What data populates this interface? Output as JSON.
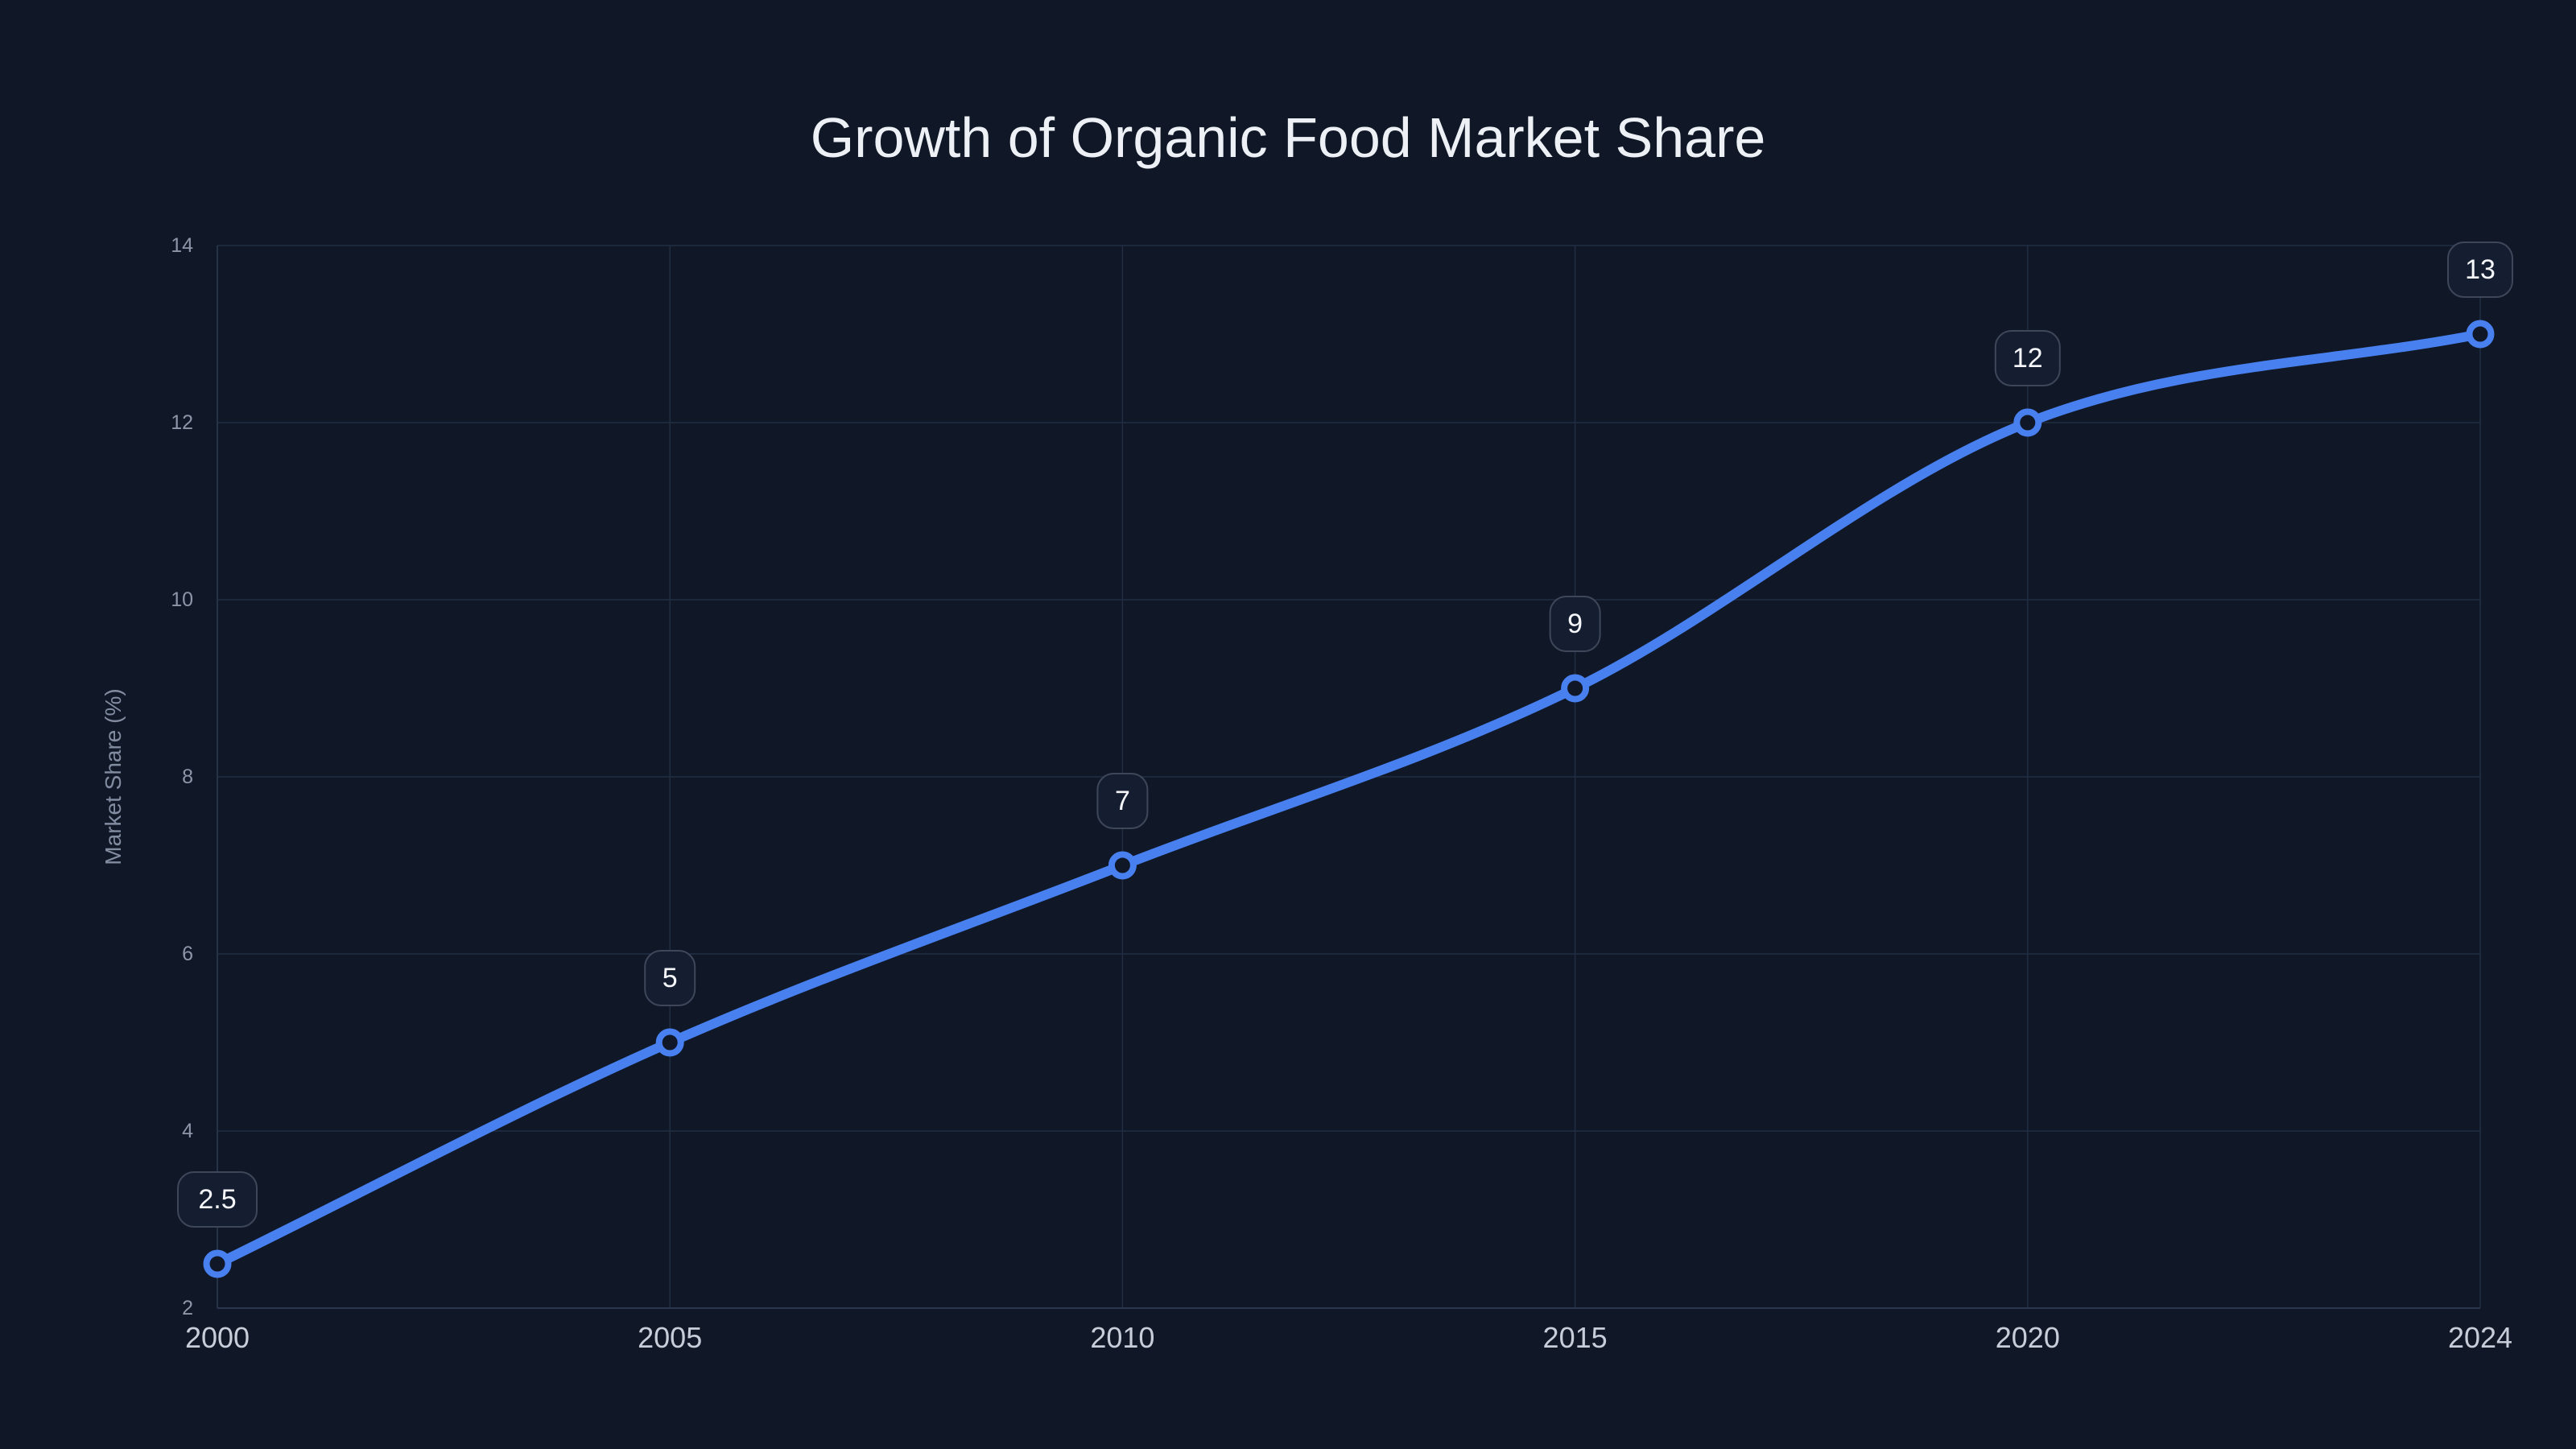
{
  "page": {
    "background": "#101827"
  },
  "chart_data": {
    "type": "line",
    "title": "Growth of Organic Food Market Share",
    "xlabel": "",
    "ylabel": "Market Share (%)",
    "categories": [
      "2000",
      "2005",
      "2010",
      "2015",
      "2020",
      "2024"
    ],
    "series": [
      {
        "name": "Market Share",
        "values": [
          2.5,
          5,
          7,
          9,
          12,
          13
        ]
      }
    ],
    "point_labels": [
      "2.5",
      "5",
      "7",
      "9",
      "12",
      "13"
    ],
    "ylim": [
      2,
      14
    ],
    "yticks": [
      2,
      4,
      6,
      8,
      10,
      12,
      14
    ],
    "grid": true,
    "legend": "none",
    "smooth": true,
    "marker": "open-circle",
    "colors": {
      "background": "#101827",
      "line": "#4880f0",
      "marker_fill": "#101827",
      "grid": "#212d42",
      "axis": "#2b374e",
      "title_text": "#edf1f6",
      "x_tick_text": "#c7cdd9",
      "y_tick_text": "#8d96a8",
      "y_axis_title_text": "#828ca0",
      "label_box_bg": "#151e31",
      "label_box_border": "#3e4759",
      "label_text": "#f5f7fa"
    }
  }
}
